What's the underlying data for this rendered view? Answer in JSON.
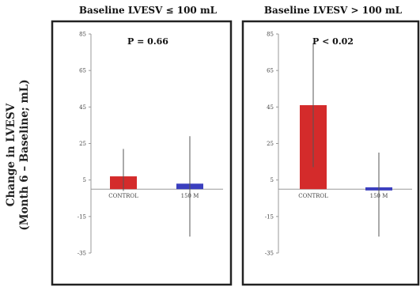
{
  "ylabel_line1": "Change in LVESV",
  "ylabel_line2": "(Month 6 – Baseline; mL)",
  "colors": {
    "control": "#d42b2b",
    "treatment": "#3b3fbf",
    "frame": "#222222",
    "axis": "#999999",
    "errorbar": "#555555"
  },
  "chart_data": [
    {
      "type": "bar",
      "title": "Baseline LVESV ≤ 100 mL",
      "annotation": "P = 0.66",
      "categories": [
        "CONTROL",
        "150 M"
      ],
      "values": [
        7,
        3
      ],
      "error_low": [
        -1,
        -26
      ],
      "error_high": [
        22,
        29
      ],
      "yticks": [
        -35,
        -15,
        5,
        25,
        45,
        65,
        85
      ],
      "ylim": [
        -35,
        85
      ]
    },
    {
      "type": "bar",
      "title": "Baseline LVESV > 100 mL",
      "annotation": "P < 0.02",
      "categories": [
        "CONTROL",
        "150 M"
      ],
      "values": [
        46,
        1
      ],
      "error_low": [
        12,
        -26
      ],
      "error_high": [
        80,
        20
      ],
      "yticks": [
        -35,
        -15,
        5,
        25,
        45,
        65,
        85
      ],
      "ylim": [
        -35,
        85
      ]
    }
  ]
}
